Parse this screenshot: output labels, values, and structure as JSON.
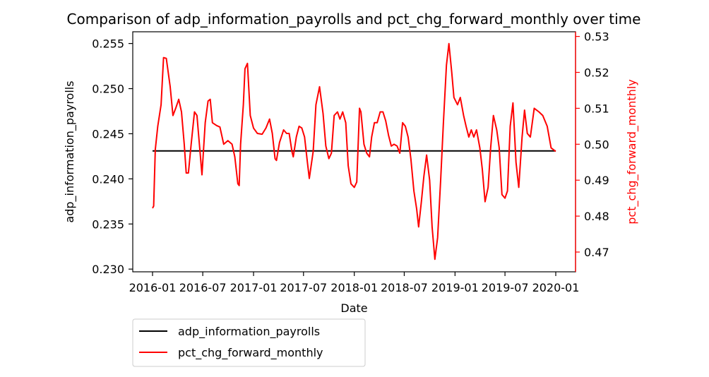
{
  "chart_data": {
    "type": "line",
    "title": "Comparison of adp_information_payrolls and pct_chg_forward_monthly over time",
    "xlabel": "Date",
    "ylabel_left": "adp_information_payrolls",
    "ylabel_right": "pct_chg_forward_monthly",
    "colors": {
      "left": "#000000",
      "right": "#ff0000"
    },
    "legend_position": "below-left",
    "grid": false,
    "xlim": [
      "2016-01-01",
      "2020-01-01"
    ],
    "ylim_left": [
      0.2297,
      0.2563
    ],
    "ylim_right": [
      0.4645,
      0.5313
    ],
    "x_ticks": [
      "2016-01",
      "2016-07",
      "2017-01",
      "2017-07",
      "2018-01",
      "2018-07",
      "2019-01",
      "2019-07",
      "2020-01"
    ],
    "y_ticks_left": [
      0.23,
      0.235,
      0.24,
      0.245,
      0.25,
      0.255
    ],
    "y_ticks_right": [
      0.47,
      0.48,
      0.49,
      0.5,
      0.51,
      0.52,
      0.53
    ],
    "series": [
      {
        "name": "adp_information_payrolls",
        "axis": "left",
        "color": "#000000",
        "points": [
          [
            "2016-01-01",
            0.2431
          ],
          [
            "2020-01-01",
            0.2431
          ]
        ]
      },
      {
        "name": "pct_chg_forward_monthly",
        "axis": "right",
        "color": "#ff0000",
        "points": [
          [
            "2016-01-01",
            0.4822
          ],
          [
            "2016-01-05",
            0.4828
          ],
          [
            "2016-01-11",
            0.4985
          ],
          [
            "2016-01-20",
            0.505
          ],
          [
            "2016-02-01",
            0.511
          ],
          [
            "2016-02-10",
            0.5241
          ],
          [
            "2016-02-20",
            0.5239
          ],
          [
            "2016-03-05",
            0.516
          ],
          [
            "2016-03-15",
            0.508
          ],
          [
            "2016-03-25",
            0.51
          ],
          [
            "2016-04-05",
            0.5125
          ],
          [
            "2016-04-15",
            0.509
          ],
          [
            "2016-04-25",
            0.5
          ],
          [
            "2016-05-02",
            0.492
          ],
          [
            "2016-05-10",
            0.492
          ],
          [
            "2016-05-20",
            0.5
          ],
          [
            "2016-06-01",
            0.509
          ],
          [
            "2016-06-10",
            0.508
          ],
          [
            "2016-06-20",
            0.499
          ],
          [
            "2016-06-28",
            0.4915
          ],
          [
            "2016-07-10",
            0.506
          ],
          [
            "2016-07-20",
            0.512
          ],
          [
            "2016-07-28",
            0.5125
          ],
          [
            "2016-08-05",
            0.506
          ],
          [
            "2016-08-20",
            0.5052
          ],
          [
            "2016-09-01",
            0.5048
          ],
          [
            "2016-09-15",
            0.5
          ],
          [
            "2016-09-30",
            0.501
          ],
          [
            "2016-10-15",
            0.5
          ],
          [
            "2016-10-25",
            0.4965
          ],
          [
            "2016-11-05",
            0.489
          ],
          [
            "2016-11-10",
            0.4885
          ],
          [
            "2016-11-15",
            0.5
          ],
          [
            "2016-11-25",
            0.511
          ],
          [
            "2016-12-01",
            0.521
          ],
          [
            "2016-12-10",
            0.5225
          ],
          [
            "2016-12-20",
            0.508
          ],
          [
            "2017-01-01",
            0.5045
          ],
          [
            "2017-01-15",
            0.503
          ],
          [
            "2017-02-01",
            0.5028
          ],
          [
            "2017-02-15",
            0.5045
          ],
          [
            "2017-02-28",
            0.507
          ],
          [
            "2017-03-10",
            0.503
          ],
          [
            "2017-03-20",
            0.496
          ],
          [
            "2017-03-25",
            0.4955
          ],
          [
            "2017-04-05",
            0.5005
          ],
          [
            "2017-04-20",
            0.504
          ],
          [
            "2017-05-01",
            0.503
          ],
          [
            "2017-05-10",
            0.503
          ],
          [
            "2017-05-20",
            0.498
          ],
          [
            "2017-05-25",
            0.4965
          ],
          [
            "2017-06-05",
            0.502
          ],
          [
            "2017-06-15",
            0.505
          ],
          [
            "2017-06-25",
            0.5045
          ],
          [
            "2017-07-05",
            0.502
          ],
          [
            "2017-07-15",
            0.495
          ],
          [
            "2017-07-22",
            0.4905
          ],
          [
            "2017-08-05",
            0.498
          ],
          [
            "2017-08-15",
            0.511
          ],
          [
            "2017-08-28",
            0.516
          ],
          [
            "2017-09-10",
            0.5085
          ],
          [
            "2017-09-20",
            0.4995
          ],
          [
            "2017-10-01",
            0.496
          ],
          [
            "2017-10-10",
            0.4975
          ],
          [
            "2017-10-20",
            0.508
          ],
          [
            "2017-11-01",
            0.509
          ],
          [
            "2017-11-10",
            0.507
          ],
          [
            "2017-11-20",
            0.509
          ],
          [
            "2017-12-01",
            0.506
          ],
          [
            "2017-12-10",
            0.494
          ],
          [
            "2017-12-20",
            0.489
          ],
          [
            "2018-01-01",
            0.488
          ],
          [
            "2018-01-10",
            0.4895
          ],
          [
            "2018-01-20",
            0.51
          ],
          [
            "2018-01-25",
            0.509
          ],
          [
            "2018-02-05",
            0.5
          ],
          [
            "2018-02-15",
            0.4975
          ],
          [
            "2018-02-25",
            0.4965
          ],
          [
            "2018-03-05",
            0.502
          ],
          [
            "2018-03-15",
            0.506
          ],
          [
            "2018-03-25",
            0.506
          ],
          [
            "2018-04-05",
            0.509
          ],
          [
            "2018-04-15",
            0.509
          ],
          [
            "2018-04-25",
            0.5065
          ],
          [
            "2018-05-05",
            0.5025
          ],
          [
            "2018-05-15",
            0.4995
          ],
          [
            "2018-05-25",
            0.5
          ],
          [
            "2018-06-05",
            0.4995
          ],
          [
            "2018-06-15",
            0.4975
          ],
          [
            "2018-06-25",
            0.506
          ],
          [
            "2018-07-05",
            0.505
          ],
          [
            "2018-07-15",
            0.502
          ],
          [
            "2018-07-25",
            0.496
          ],
          [
            "2018-08-05",
            0.487
          ],
          [
            "2018-08-15",
            0.482
          ],
          [
            "2018-08-22",
            0.477
          ],
          [
            "2018-09-01",
            0.484
          ],
          [
            "2018-09-10",
            0.491
          ],
          [
            "2018-09-20",
            0.497
          ],
          [
            "2018-10-01",
            0.49
          ],
          [
            "2018-10-10",
            0.477
          ],
          [
            "2018-10-20",
            0.468
          ],
          [
            "2018-10-30",
            0.474
          ],
          [
            "2018-11-10",
            0.49
          ],
          [
            "2018-11-20",
            0.506
          ],
          [
            "2018-12-01",
            0.522
          ],
          [
            "2018-12-10",
            0.528
          ],
          [
            "2018-12-20",
            0.52
          ],
          [
            "2018-12-28",
            0.513
          ],
          [
            "2019-01-10",
            0.511
          ],
          [
            "2019-01-20",
            0.513
          ],
          [
            "2019-02-01",
            0.508
          ],
          [
            "2019-02-10",
            0.505
          ],
          [
            "2019-02-20",
            0.502
          ],
          [
            "2019-03-01",
            0.504
          ],
          [
            "2019-03-10",
            0.502
          ],
          [
            "2019-03-20",
            0.504
          ],
          [
            "2019-04-01",
            0.499
          ],
          [
            "2019-04-10",
            0.493
          ],
          [
            "2019-04-20",
            0.484
          ],
          [
            "2019-05-01",
            0.488
          ],
          [
            "2019-05-10",
            0.499
          ],
          [
            "2019-05-20",
            0.508
          ],
          [
            "2019-06-01",
            0.504
          ],
          [
            "2019-06-10",
            0.499
          ],
          [
            "2019-06-20",
            0.486
          ],
          [
            "2019-07-01",
            0.485
          ],
          [
            "2019-07-10",
            0.487
          ],
          [
            "2019-07-20",
            0.505
          ],
          [
            "2019-07-30",
            0.5115
          ],
          [
            "2019-08-10",
            0.495
          ],
          [
            "2019-08-20",
            0.488
          ],
          [
            "2019-09-01",
            0.502
          ],
          [
            "2019-09-10",
            0.5095
          ],
          [
            "2019-09-20",
            0.503
          ],
          [
            "2019-10-01",
            0.502
          ],
          [
            "2019-10-15",
            0.51
          ],
          [
            "2019-11-01",
            0.509
          ],
          [
            "2019-11-15",
            0.508
          ],
          [
            "2019-12-01",
            0.505
          ],
          [
            "2019-12-15",
            0.499
          ],
          [
            "2020-01-01",
            0.498
          ]
        ]
      }
    ]
  }
}
